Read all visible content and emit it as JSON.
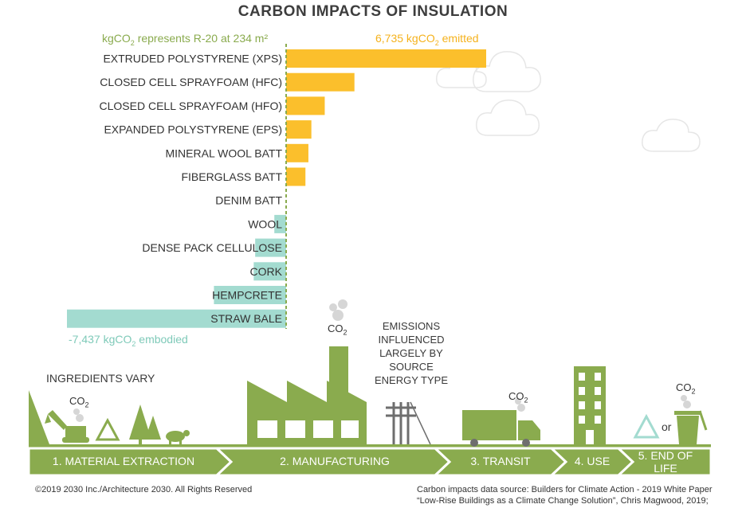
{
  "page": {
    "title": "CARBON IMPACTS OF INSULATION",
    "colors": {
      "emitted": "#fbbf2c",
      "embodied": "#a3dbd0",
      "green": "#8aab4e",
      "gray": "#6e6e6e"
    }
  },
  "captions": {
    "basis_pre": "kgCO",
    "basis_sub": "2",
    "basis_post": " represents R-20 at 234 m²",
    "emitted_pre": "6,735 kgCO",
    "emitted_sub": "2",
    "emitted_post": " emitted",
    "embodied_pre": "-7,437 kgCO",
    "embodied_sub": "2",
    "embodied_post": " embodied"
  },
  "chart_data": {
    "type": "bar",
    "orientation": "horizontal",
    "title": "CARBON IMPACTS OF INSULATION",
    "unit": "kgCO2",
    "categories": [
      "EXTRUDED POLYSTYRENE (XPS)",
      "CLOSED CELL SPRAYFOAM (HFC)",
      "CLOSED CELL SPRAYFOAM (HFO)",
      "EXPANDED POLYSTYRENE (EPS)",
      "MINERAL WOOL BATT",
      "FIBERGLASS BATT",
      "DENIM BATT",
      "WOOL",
      "DENSE PACK CELLULOSE",
      "CORK",
      "HEMPCRETE",
      "STRAW BALE"
    ],
    "values": [
      6735,
      2300,
      1300,
      850,
      750,
      650,
      0,
      -400,
      -1050,
      -1100,
      -2450,
      -7437
    ],
    "xlim": [
      -7437,
      6735
    ],
    "colors": {
      "positive": "#fbbf2c",
      "negative": "#a3dbd0"
    }
  },
  "illustration": {
    "ingredients_note": "INGREDIENTS VARY",
    "emissions_note": [
      "EMISSIONS",
      "INFLUENCED",
      "LARGELY BY",
      "SOURCE",
      "ENERGY TYPE"
    ],
    "co2_main": "CO",
    "co2_sub": "2",
    "or_word": "or",
    "stages": [
      "1. MATERIAL EXTRACTION",
      "2. MANUFACTURING",
      "3. TRANSIT",
      "4. USE",
      "5. END OF LIFE"
    ]
  },
  "footer": {
    "copyright": "©2019 2030 Inc./Architecture 2030. All Rights Reserved",
    "source_line1": "Carbon impacts data source: Builders for Climate Action - 2019 White Paper",
    "source_line2": "“Low-Rise Buildings as a Climate Change Solution”, Chris Magwood, 2019;"
  }
}
